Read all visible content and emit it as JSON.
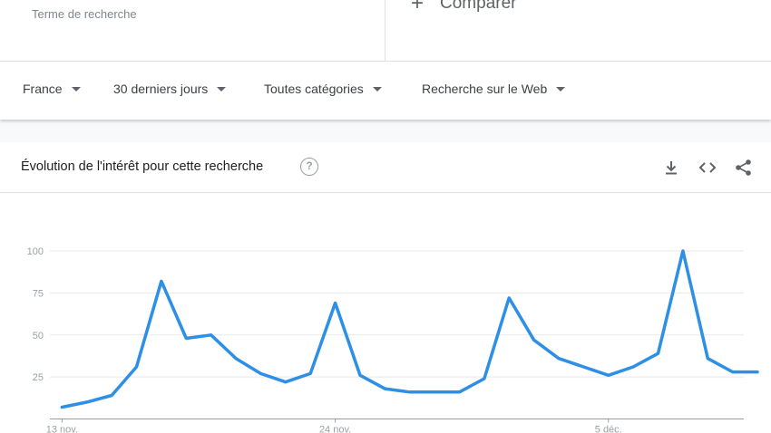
{
  "header": {
    "term_subtitle": "Terme de recherche",
    "compare_label": "Comparer",
    "compare_icon": "plus-icon"
  },
  "filters": [
    {
      "label": "France"
    },
    {
      "label": "30 derniers jours"
    },
    {
      "label": "Toutes catégories"
    },
    {
      "label": "Recherche sur le Web"
    }
  ],
  "panel": {
    "title": "Évolution de l'intérêt pour cette recherche",
    "help_icon": "help-icon",
    "help_glyph": "?",
    "tools": [
      "download-icon",
      "embed-icon",
      "share-icon"
    ]
  },
  "colors": {
    "line": "#2d8fe6",
    "grid": "#e8e8e8",
    "axis_text": "#9aa0a6"
  },
  "chart_data": {
    "type": "line",
    "title": "",
    "xlabel": "",
    "ylabel": "",
    "ylim": [
      0,
      100
    ],
    "yticks": [
      25,
      50,
      75,
      100
    ],
    "xtick_labels": [
      {
        "label": "13 nov.",
        "x": "2021-11-13"
      },
      {
        "label": "24 nov.",
        "x": "2021-11-24"
      },
      {
        "label": "5 déc.",
        "x": "2021-12-05"
      }
    ],
    "x": [
      "2021-11-13",
      "2021-11-14",
      "2021-11-15",
      "2021-11-16",
      "2021-11-17",
      "2021-11-18",
      "2021-11-19",
      "2021-11-20",
      "2021-11-21",
      "2021-11-22",
      "2021-11-23",
      "2021-11-24",
      "2021-11-25",
      "2021-11-26",
      "2021-11-27",
      "2021-11-28",
      "2021-11-29",
      "2021-11-30",
      "2021-12-01",
      "2021-12-02",
      "2021-12-03",
      "2021-12-04",
      "2021-12-05",
      "2021-12-06",
      "2021-12-07",
      "2021-12-08",
      "2021-12-09",
      "2021-12-10",
      "2021-12-11"
    ],
    "series": [
      {
        "values": [
          7,
          10,
          14,
          31,
          82,
          48,
          50,
          36,
          27,
          22,
          27,
          69,
          26,
          18,
          16,
          16,
          16,
          24,
          72,
          47,
          36,
          31,
          26,
          31,
          39,
          100,
          36,
          28,
          28
        ]
      }
    ],
    "grid": true
  }
}
